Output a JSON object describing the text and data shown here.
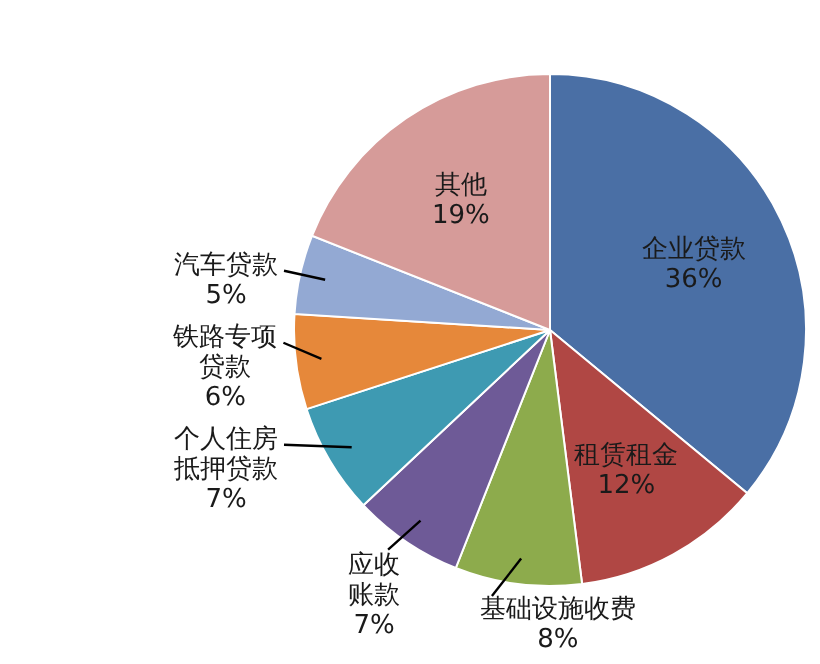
{
  "chart_data": {
    "type": "pie",
    "categories": [
      "企业贷款",
      "租赁租金",
      "基础设施收费",
      "应收账款",
      "个人住房抵押贷款",
      "铁路专项贷款",
      "汽车贷款",
      "其他"
    ],
    "values": [
      36,
      12,
      8,
      7,
      7,
      6,
      5,
      19
    ],
    "value_labels": [
      "36%",
      "12%",
      "8%",
      "7%",
      "7%",
      "6%",
      "5%",
      "19%"
    ],
    "colors": [
      "#4a6fa5",
      "#b04744",
      "#8dab4c",
      "#6e5a97",
      "#3e9ab2",
      "#e6883a",
      "#93a9d3",
      "#d69b99"
    ]
  }
}
